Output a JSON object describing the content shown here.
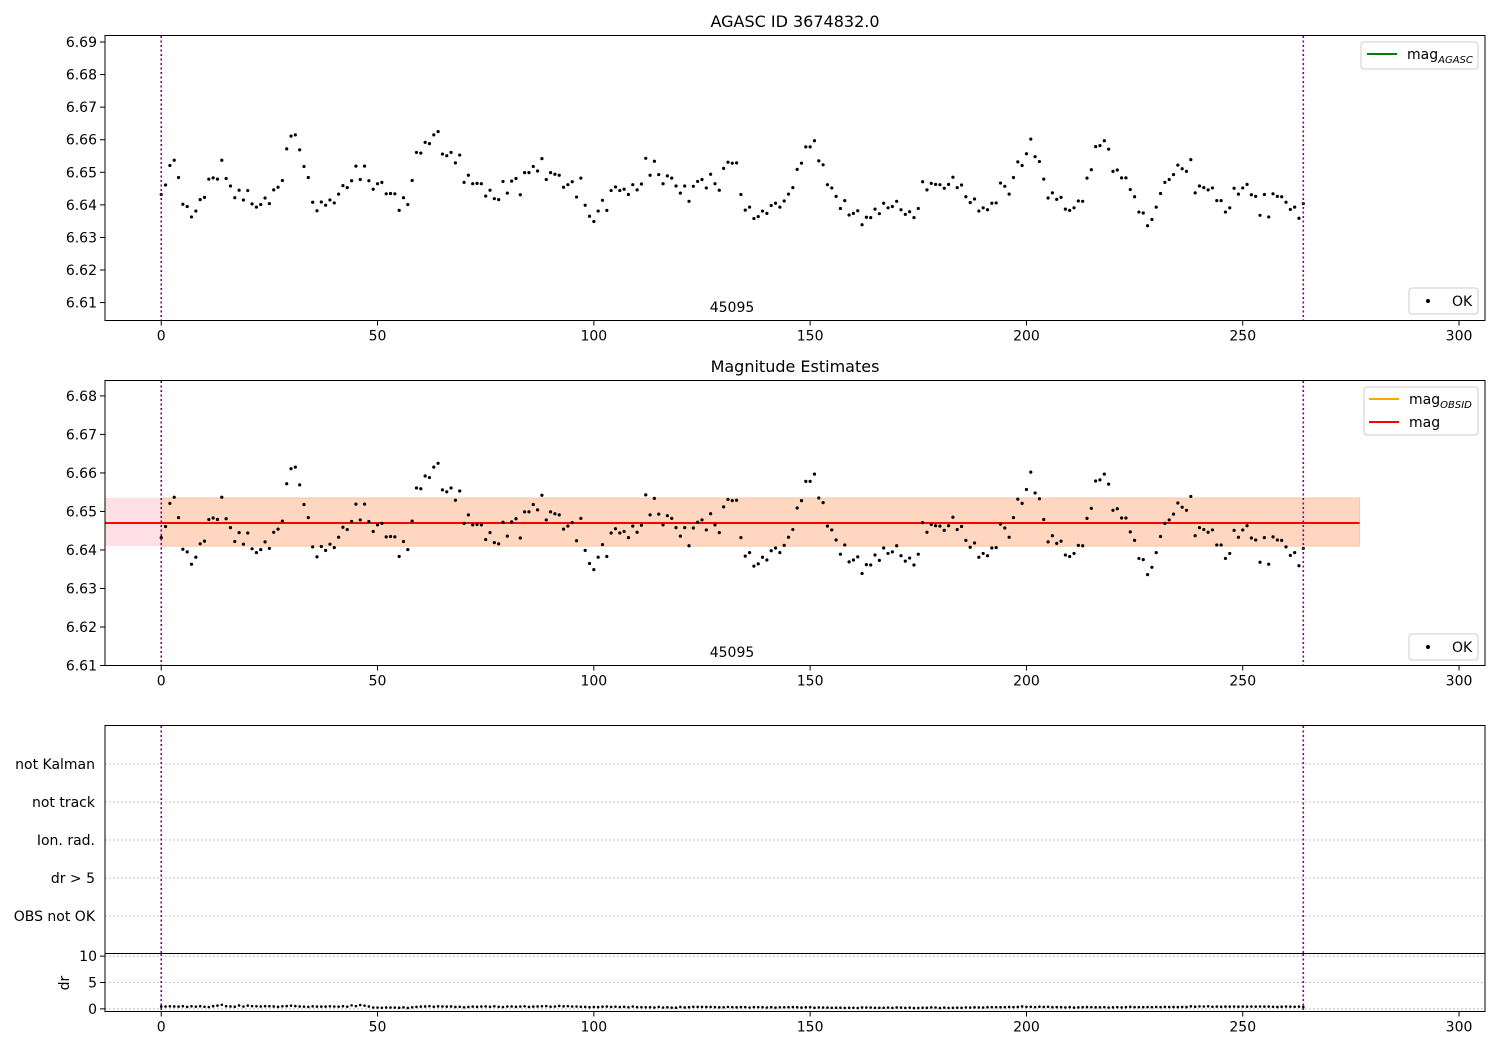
{
  "figure": {
    "shared_x": {
      "xlim": [
        -13,
        306
      ],
      "xticks": [
        0,
        50,
        100,
        150,
        200,
        250,
        300
      ],
      "vlines": [
        0,
        264
      ],
      "vline_color": "#800080"
    },
    "panel1": {
      "title": "AGASC ID 3674832.0",
      "annotation": "45095",
      "ylim": [
        6.6045,
        6.692
      ],
      "yticks": [
        6.61,
        6.62,
        6.63,
        6.64,
        6.65,
        6.66,
        6.67,
        6.68,
        6.69
      ],
      "legend_upper": [
        {
          "label": "mag",
          "sub": "AGASC",
          "color": "#008000"
        }
      ],
      "legend_lower": [
        {
          "label": "OK",
          "marker": "point"
        }
      ]
    },
    "panel2": {
      "title": "Magnitude Estimates",
      "annotation": "45095",
      "ylim": [
        6.61,
        6.684
      ],
      "yticks": [
        6.61,
        6.62,
        6.63,
        6.64,
        6.65,
        6.66,
        6.67,
        6.68
      ],
      "band": {
        "x": [
          -13,
          277
        ],
        "y": [
          6.641,
          6.6535
        ],
        "colors": [
          "#ffdfe6",
          "#ffd7c0"
        ]
      },
      "lines": [
        {
          "label": "mag",
          "sub": "OBSID",
          "color": "#ffa500",
          "y": 6.647
        },
        {
          "label": "mag",
          "sub": "",
          "color": "#ff0000",
          "y": 6.647
        }
      ],
      "legend_lower": [
        {
          "label": "OK",
          "marker": "point"
        }
      ]
    },
    "panel3": {
      "categories": [
        "not Kalman",
        "not track",
        "Ion. rad.",
        "dr > 5",
        "OBS not OK"
      ]
    },
    "panel4": {
      "ylabel": "dr",
      "ylim": [
        -0.5,
        10.5
      ],
      "yticks": [
        0,
        5,
        10
      ]
    }
  },
  "chart_data": {
    "type": "scatter",
    "series": [
      {
        "name": "OK",
        "x_start": 0,
        "x_step": 1,
        "mag": [
          6.6432,
          6.6461,
          6.6521,
          6.6537,
          6.6484,
          6.6402,
          6.6395,
          6.6363,
          6.6381,
          6.6416,
          6.6423,
          6.6479,
          6.6483,
          6.6479,
          6.6537,
          6.6481,
          6.6458,
          6.6422,
          6.6445,
          6.6415,
          6.6444,
          6.6403,
          6.6393,
          6.6401,
          6.6421,
          6.6404,
          6.6446,
          6.6454,
          6.6475,
          6.6572,
          6.6611,
          6.6615,
          6.6569,
          6.6518,
          6.6484,
          6.6408,
          6.6382,
          6.6409,
          6.6399,
          6.6415,
          6.6406,
          6.6433,
          6.6459,
          6.6453,
          6.6474,
          6.6519,
          6.6478,
          6.6519,
          6.6474,
          6.6448,
          6.6465,
          6.6469,
          6.6434,
          6.6435,
          6.6434,
          6.6383,
          6.6422,
          6.6401,
          6.6475,
          6.6561,
          6.6559,
          6.6592,
          6.6588,
          6.6615,
          6.6625,
          6.6556,
          6.6551,
          6.6561,
          6.6529,
          6.6553,
          6.6469,
          6.6491,
          6.6465,
          6.6466,
          6.6465,
          6.6427,
          6.6445,
          6.6419,
          6.6416,
          6.6472,
          6.6436,
          6.6473,
          6.6481,
          6.6431,
          6.6499,
          6.6499,
          6.6518,
          6.6504,
          6.6542,
          6.6478,
          6.6499,
          6.6494,
          6.6491,
          6.6454,
          6.6462,
          6.6471,
          6.6424,
          6.6482,
          6.6399,
          6.6365,
          6.6349,
          6.6381,
          6.6414,
          6.6383,
          6.6444,
          6.6455,
          6.6444,
          6.6448,
          6.6432,
          6.6462,
          6.6446,
          6.6464,
          6.6543,
          6.6491,
          6.6534,
          6.6493,
          6.6465,
          6.6489,
          6.6482,
          6.6458,
          6.6436,
          6.6458,
          6.6411,
          6.6457,
          6.6472,
          6.6478,
          6.6452,
          6.6494,
          6.6465,
          6.6445,
          6.6512,
          6.6531,
          6.6528,
          6.6529,
          6.6432,
          6.6384,
          6.6393,
          6.6358,
          6.6364,
          6.6381,
          6.6374,
          6.6398,
          6.6405,
          6.6393,
          6.6412,
          6.6433,
          6.6453,
          6.6509,
          6.6528,
          6.6578,
          6.6578,
          6.6597,
          6.6535,
          6.6523,
          6.6462,
          6.6452,
          6.6426,
          6.6389,
          6.6413,
          6.6369,
          6.6374,
          6.6382,
          6.6339,
          6.6362,
          6.6361,
          6.6387,
          6.6373,
          6.6405,
          6.6391,
          6.6395,
          6.6411,
          6.6385,
          6.6371,
          6.6379,
          6.6361,
          6.6389,
          6.6471,
          6.6446,
          6.6466,
          6.6463,
          6.6462,
          6.6451,
          6.6463,
          6.6485,
          6.6453,
          6.6461,
          6.6425,
          6.6407,
          6.6418,
          6.6381,
          6.6391,
          6.6385,
          6.6405,
          6.6406,
          6.6467,
          6.6457,
          6.6433,
          6.6484,
          6.6532,
          6.6521,
          6.6557,
          6.6602,
          6.6548,
          6.6533,
          6.6479,
          6.6421,
          6.6437,
          6.6417,
          6.6423,
          6.6387,
          6.6383,
          6.6391,
          6.6412,
          6.6411,
          6.6482,
          6.6508,
          6.6579,
          6.6582,
          6.6597,
          6.6571,
          6.6503,
          6.6507,
          6.6483,
          6.6483,
          6.6447,
          6.6425,
          6.6378,
          6.6375,
          6.6336,
          6.6355,
          6.6393,
          6.6435,
          6.6469,
          6.6478,
          6.6493,
          6.6522,
          6.6511,
          6.6503,
          6.6539,
          6.6437,
          6.6458,
          6.6453,
          6.6446,
          6.6452,
          6.6413,
          6.6413,
          6.6378,
          6.6391,
          6.6451,
          6.6433,
          6.6452,
          6.6463,
          6.6431,
          6.6426,
          6.6368,
          6.6432,
          6.6363,
          6.6434,
          6.6426,
          6.6425,
          6.6408,
          6.6386,
          6.6393,
          6.6359,
          6.6404
        ],
        "dr": [
          0.43,
          0.45,
          0.49,
          0.46,
          0.43,
          0.5,
          0.37,
          0.49,
          0.42,
          0.5,
          0.4,
          0.35,
          0.5,
          0.62,
          0.78,
          0.5,
          0.46,
          0.41,
          0.65,
          0.44,
          0.62,
          0.51,
          0.49,
          0.46,
          0.51,
          0.5,
          0.46,
          0.38,
          0.49,
          0.53,
          0.61,
          0.53,
          0.46,
          0.42,
          0.37,
          0.48,
          0.43,
          0.43,
          0.43,
          0.49,
          0.45,
          0.42,
          0.5,
          0.42,
          0.66,
          0.52,
          0.73,
          0.61,
          0.46,
          0.26,
          0.25,
          0.21,
          0.27,
          0.26,
          0.25,
          0.22,
          0.29,
          0.18,
          0.3,
          0.37,
          0.43,
          0.46,
          0.51,
          0.41,
          0.48,
          0.46,
          0.43,
          0.46,
          0.36,
          0.39,
          0.3,
          0.36,
          0.43,
          0.38,
          0.44,
          0.47,
          0.39,
          0.49,
          0.39,
          0.35,
          0.45,
          0.46,
          0.38,
          0.44,
          0.49,
          0.37,
          0.43,
          0.46,
          0.49,
          0.52,
          0.41,
          0.45,
          0.55,
          0.48,
          0.52,
          0.44,
          0.44,
          0.4,
          0.38,
          0.31,
          0.37,
          0.34,
          0.42,
          0.44,
          0.37,
          0.42,
          0.35,
          0.38,
          0.3,
          0.45,
          0.33,
          0.32,
          0.3,
          0.31,
          0.26,
          0.37,
          0.25,
          0.3,
          0.23,
          0.22,
          0.37,
          0.27,
          0.31,
          0.38,
          0.37,
          0.37,
          0.36,
          0.37,
          0.32,
          0.29,
          0.3,
          0.37,
          0.32,
          0.29,
          0.34,
          0.33,
          0.25,
          0.34,
          0.32,
          0.31,
          0.26,
          0.31,
          0.23,
          0.3,
          0.3,
          0.31,
          0.34,
          0.31,
          0.24,
          0.3,
          0.32,
          0.21,
          0.28,
          0.25,
          0.24,
          0.2,
          0.22,
          0.23,
          0.18,
          0.22,
          0.21,
          0.16,
          0.27,
          0.25,
          0.25,
          0.21,
          0.2,
          0.21,
          0.25,
          0.18,
          0.27,
          0.24,
          0.18,
          0.24,
          0.15,
          0.17,
          0.22,
          0.2,
          0.28,
          0.26,
          0.17,
          0.24,
          0.18,
          0.2,
          0.23,
          0.19,
          0.28,
          0.25,
          0.29,
          0.28,
          0.25,
          0.31,
          0.32,
          0.33,
          0.31,
          0.33,
          0.36,
          0.33,
          0.36,
          0.46,
          0.37,
          0.4,
          0.33,
          0.41,
          0.36,
          0.39,
          0.31,
          0.34,
          0.32,
          0.28,
          0.34,
          0.24,
          0.29,
          0.31,
          0.34,
          0.33,
          0.29,
          0.3,
          0.33,
          0.25,
          0.29,
          0.33,
          0.28,
          0.32,
          0.38,
          0.32,
          0.33,
          0.32,
          0.35,
          0.32,
          0.37,
          0.33,
          0.37,
          0.35,
          0.36,
          0.34,
          0.37,
          0.34,
          0.48,
          0.41,
          0.47,
          0.45,
          0.49,
          0.4,
          0.43,
          0.39,
          0.43,
          0.42,
          0.44,
          0.41,
          0.43,
          0.42,
          0.44,
          0.42,
          0.45,
          0.43,
          0.44,
          0.4,
          0.36,
          0.41,
          0.45,
          0.42,
          0.39,
          0.43,
          0.37
        ]
      }
    ],
    "xlim": [
      -13,
      306
    ],
    "legend_placement": "upper-right and lower-right",
    "grid": "dotted horizontal lines in flag panel and dr panel"
  }
}
